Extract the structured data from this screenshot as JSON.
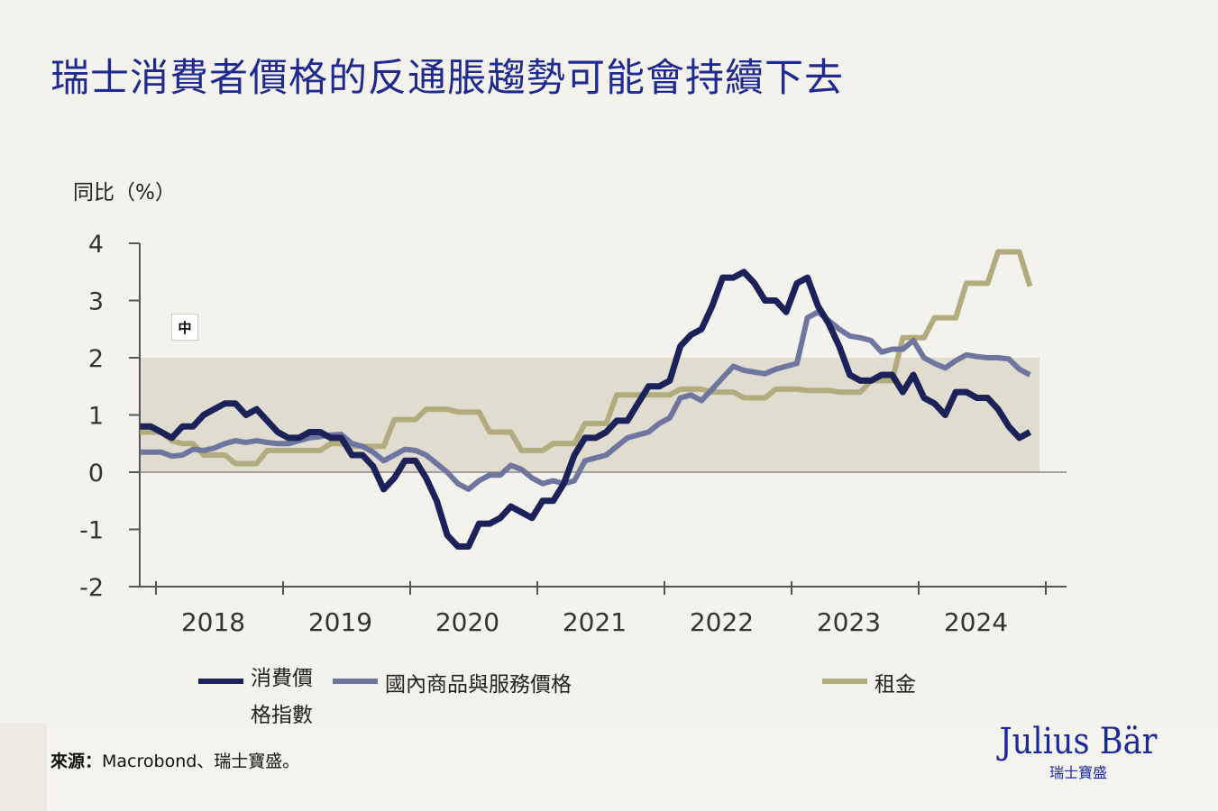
{
  "title": "瑞士消費者價格的反通脹趨勢可能會持續下去",
  "overlay_box": "中",
  "chart_data": {
    "type": "line",
    "title": "瑞士消費者價格的反通脹趨勢可能會持續下去",
    "ylabel": "同比（%）",
    "xlabel": "",
    "ylim": [
      -2,
      4
    ],
    "yticks": [
      "4",
      "3",
      "2",
      "1",
      "0",
      "-1",
      "-2"
    ],
    "xlim": [
      "2018-01",
      "2025-01"
    ],
    "xticks": [
      "2018",
      "2019",
      "2020",
      "2021",
      "2022",
      "2023",
      "2024"
    ],
    "shaded_band": [
      0,
      2
    ],
    "grid": false,
    "legend_position": "bottom",
    "frequency": "monthly",
    "start": "2017-11",
    "series": [
      {
        "name": "消費價格指數",
        "color": "#1a2259",
        "values": [
          0.8,
          0.8,
          0.7,
          0.6,
          0.8,
          0.8,
          1.0,
          1.1,
          1.2,
          1.2,
          1.0,
          1.1,
          0.9,
          0.7,
          0.6,
          0.6,
          0.7,
          0.7,
          0.6,
          0.6,
          0.3,
          0.3,
          0.1,
          -0.3,
          -0.1,
          0.2,
          0.2,
          -0.1,
          -0.5,
          -1.1,
          -1.3,
          -1.3,
          -0.9,
          -0.9,
          -0.8,
          -0.6,
          -0.7,
          -0.8,
          -0.5,
          -0.5,
          -0.2,
          0.3,
          0.6,
          0.6,
          0.7,
          0.9,
          0.9,
          1.2,
          1.5,
          1.5,
          1.6,
          2.2,
          2.4,
          2.5,
          2.9,
          3.4,
          3.4,
          3.5,
          3.3,
          3.0,
          3.0,
          2.8,
          3.3,
          3.4,
          2.9,
          2.6,
          2.2,
          1.7,
          1.6,
          1.6,
          1.7,
          1.7,
          1.4,
          1.7,
          1.3,
          1.2,
          1.0,
          1.4,
          1.4,
          1.3,
          1.3,
          1.1,
          0.8,
          0.6,
          0.7
        ]
      },
      {
        "name": "國內商品與服務價格",
        "color": "#6e76a0",
        "values": [
          0.35,
          0.35,
          0.35,
          0.28,
          0.3,
          0.4,
          0.38,
          0.42,
          0.5,
          0.55,
          0.52,
          0.55,
          0.52,
          0.5,
          0.5,
          0.55,
          0.6,
          0.62,
          0.65,
          0.66,
          0.5,
          0.45,
          0.35,
          0.2,
          0.3,
          0.4,
          0.38,
          0.3,
          0.15,
          0.0,
          -0.2,
          -0.3,
          -0.15,
          -0.05,
          -0.05,
          0.12,
          0.05,
          -0.1,
          -0.2,
          -0.15,
          -0.2,
          -0.15,
          0.2,
          0.25,
          0.3,
          0.45,
          0.6,
          0.65,
          0.7,
          0.85,
          0.95,
          1.3,
          1.35,
          1.25,
          1.45,
          1.65,
          1.85,
          1.78,
          1.75,
          1.72,
          1.8,
          1.85,
          1.9,
          2.7,
          2.8,
          2.65,
          2.5,
          2.38,
          2.35,
          2.3,
          2.1,
          2.15,
          2.15,
          2.3,
          2.0,
          1.9,
          1.82,
          1.95,
          2.05,
          2.02,
          2.0,
          2.0,
          1.98,
          1.8,
          1.7
        ]
      },
      {
        "name": "租金",
        "color": "#b2ab7e",
        "values": [
          0.7,
          0.7,
          0.7,
          0.55,
          0.5,
          0.5,
          0.3,
          0.3,
          0.3,
          0.15,
          0.15,
          0.15,
          0.38,
          0.38,
          0.38,
          0.38,
          0.38,
          0.38,
          0.5,
          0.5,
          0.45,
          0.45,
          0.45,
          0.45,
          0.92,
          0.92,
          0.92,
          1.1,
          1.1,
          1.1,
          1.05,
          1.05,
          1.05,
          0.7,
          0.7,
          0.7,
          0.38,
          0.38,
          0.38,
          0.5,
          0.5,
          0.5,
          0.85,
          0.85,
          0.85,
          1.35,
          1.35,
          1.35,
          1.35,
          1.35,
          1.35,
          1.45,
          1.45,
          1.45,
          1.4,
          1.4,
          1.4,
          1.3,
          1.3,
          1.3,
          1.45,
          1.45,
          1.45,
          1.43,
          1.43,
          1.43,
          1.4,
          1.4,
          1.4,
          1.6,
          1.6,
          1.6,
          2.35,
          2.35,
          2.35,
          2.7,
          2.7,
          2.7,
          3.3,
          3.3,
          3.3,
          3.85,
          3.85,
          3.85,
          3.25
        ]
      }
    ]
  },
  "legend": {
    "cpi_line1": "消費價",
    "cpi_line2": "格指數",
    "domestic": "國內商品與服務價格",
    "rent": "租金"
  },
  "footer": {
    "source_label": "來源：",
    "source_text": "Macrobond、瑞士寶盛。"
  },
  "logo": {
    "main": "Julius Bär",
    "sub": "瑞士寶盛"
  },
  "colors": {
    "title": "#1e2a8f",
    "band": "#e0ddd0",
    "background": "#f3f2ec"
  }
}
